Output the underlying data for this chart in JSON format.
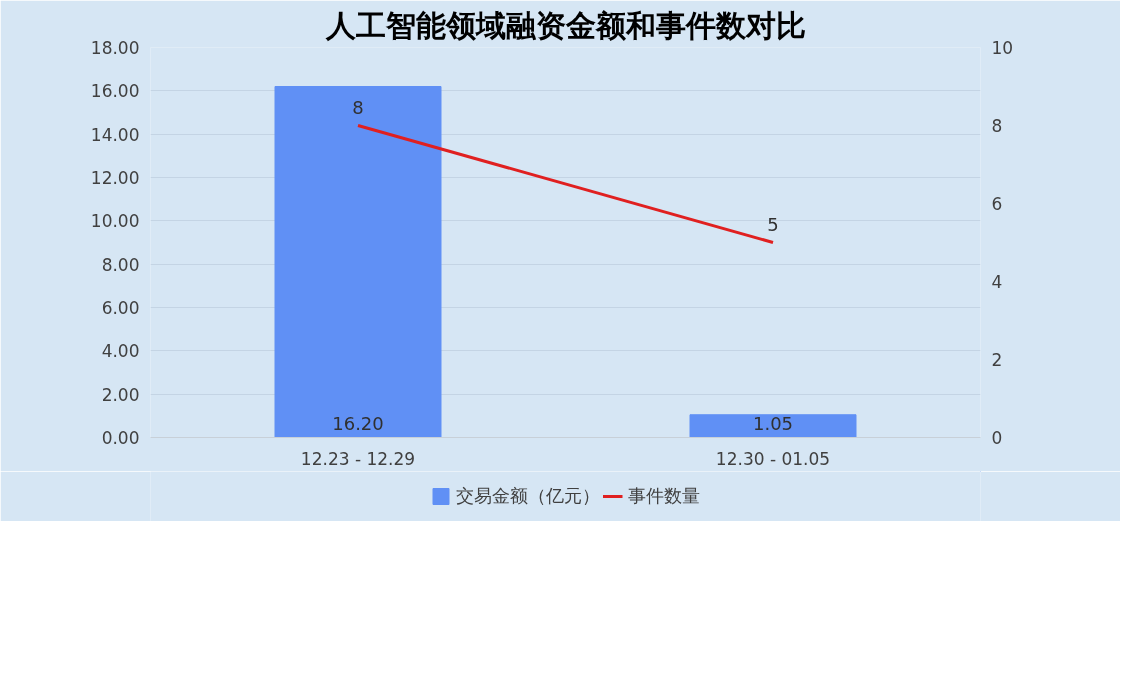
{
  "chart_data": {
    "type": "bar",
    "title": "人工智能领域融资金额和事件数对比",
    "categories": [
      "12.23 - 12.29",
      "12.30 - 01.05"
    ],
    "series": [
      {
        "name": "交易金额（亿元）",
        "color": "#6090f5",
        "values": [
          16.2,
          1.05
        ],
        "value_labels": [
          "16.20",
          "1.05"
        ]
      },
      {
        "name": "事件数量",
        "type": "line",
        "axis": "y2",
        "color": "#e02020",
        "values": [
          8,
          5
        ],
        "value_labels": [
          "8",
          "5"
        ]
      }
    ],
    "ylim": [
      0,
      18
    ],
    "yticks": [
      {
        "value": 0,
        "label": "0.00"
      },
      {
        "value": 2,
        "label": "2.00"
      },
      {
        "value": 4,
        "label": "4.00"
      },
      {
        "value": 6,
        "label": "6.00"
      },
      {
        "value": 8,
        "label": "8.00"
      },
      {
        "value": 10,
        "label": "10.00"
      },
      {
        "value": 12,
        "label": "12.00"
      },
      {
        "value": 14,
        "label": "14.00"
      },
      {
        "value": 16,
        "label": "16.00"
      },
      {
        "value": 18,
        "label": "18.00"
      }
    ],
    "y2lim": [
      0,
      10
    ],
    "y2ticks": [
      0,
      2,
      4,
      6,
      8,
      10
    ],
    "grid": "y",
    "legend": "bottom"
  }
}
